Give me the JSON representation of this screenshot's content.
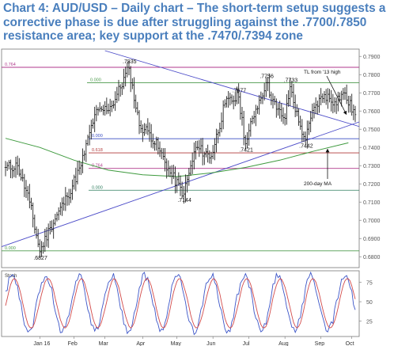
{
  "title": "Chart 4: AUD/USD – Daily chart – The short-term setup suggests a corrective phase is due after struggling against the .7700/.7850 resistance area; key support at the .7470/.7394 zone",
  "chart_data": {
    "type": "candlestick",
    "main_panel": {
      "ylim": [
        0.674,
        0.794
      ],
      "y_ticks": [
        "0.7900",
        "0.7800",
        "0.7700",
        "0.7600",
        "0.7500",
        "0.7400",
        "0.7300",
        "0.7200",
        "0.7100",
        "0.7000",
        "0.6900",
        "0.6800"
      ],
      "x_ticks": [
        "Jan 16",
        "Feb",
        "Mar",
        "Apr",
        "May",
        "Jun",
        "Jul",
        "Aug",
        "Sep",
        "Oct"
      ],
      "annotations": [
        {
          "text": ".7835",
          "x": 72,
          "y": 0.7835
        },
        {
          "text": ".7756",
          "x": 152,
          "y": 0.7756
        },
        {
          "text": ".7677",
          "x": 136,
          "y": 0.7677
        },
        {
          "text": ".7733",
          "x": 166,
          "y": 0.7733
        },
        {
          "text": ".7421",
          "x": 140,
          "y": 0.7421
        },
        {
          "text": ".7442",
          "x": 175,
          "y": 0.7442
        },
        {
          "text": ".7144",
          "x": 104,
          "y": 0.7144
        },
        {
          "text": ".6827",
          "x": 20,
          "y": 0.6827
        },
        {
          "text": "TL from '13 high"
        },
        {
          "text": "200-day MA"
        }
      ],
      "level_labels": [
        "0.764",
        "0.000",
        "0.000",
        "0.000",
        "0.000",
        "0.618",
        "0.764",
        "0.000"
      ],
      "series": [
        {
          "name": "AUD/USD",
          "kind": "ohlc"
        },
        {
          "kind": "200-day moving average",
          "x": [
            0,
            20,
            40,
            60,
            80,
            100,
            120,
            140,
            160,
            180,
            200
          ],
          "y": [
            0.745,
            0.74,
            0.733,
            0.7275,
            0.725,
            0.724,
            0.726,
            0.729,
            0.733,
            0.738,
            0.7425
          ]
        }
      ]
    },
    "stoch_panel": {
      "label": "Stoch",
      "ylim": [
        5,
        90
      ],
      "y_ticks": [
        "75",
        "50",
        "25"
      ]
    }
  }
}
